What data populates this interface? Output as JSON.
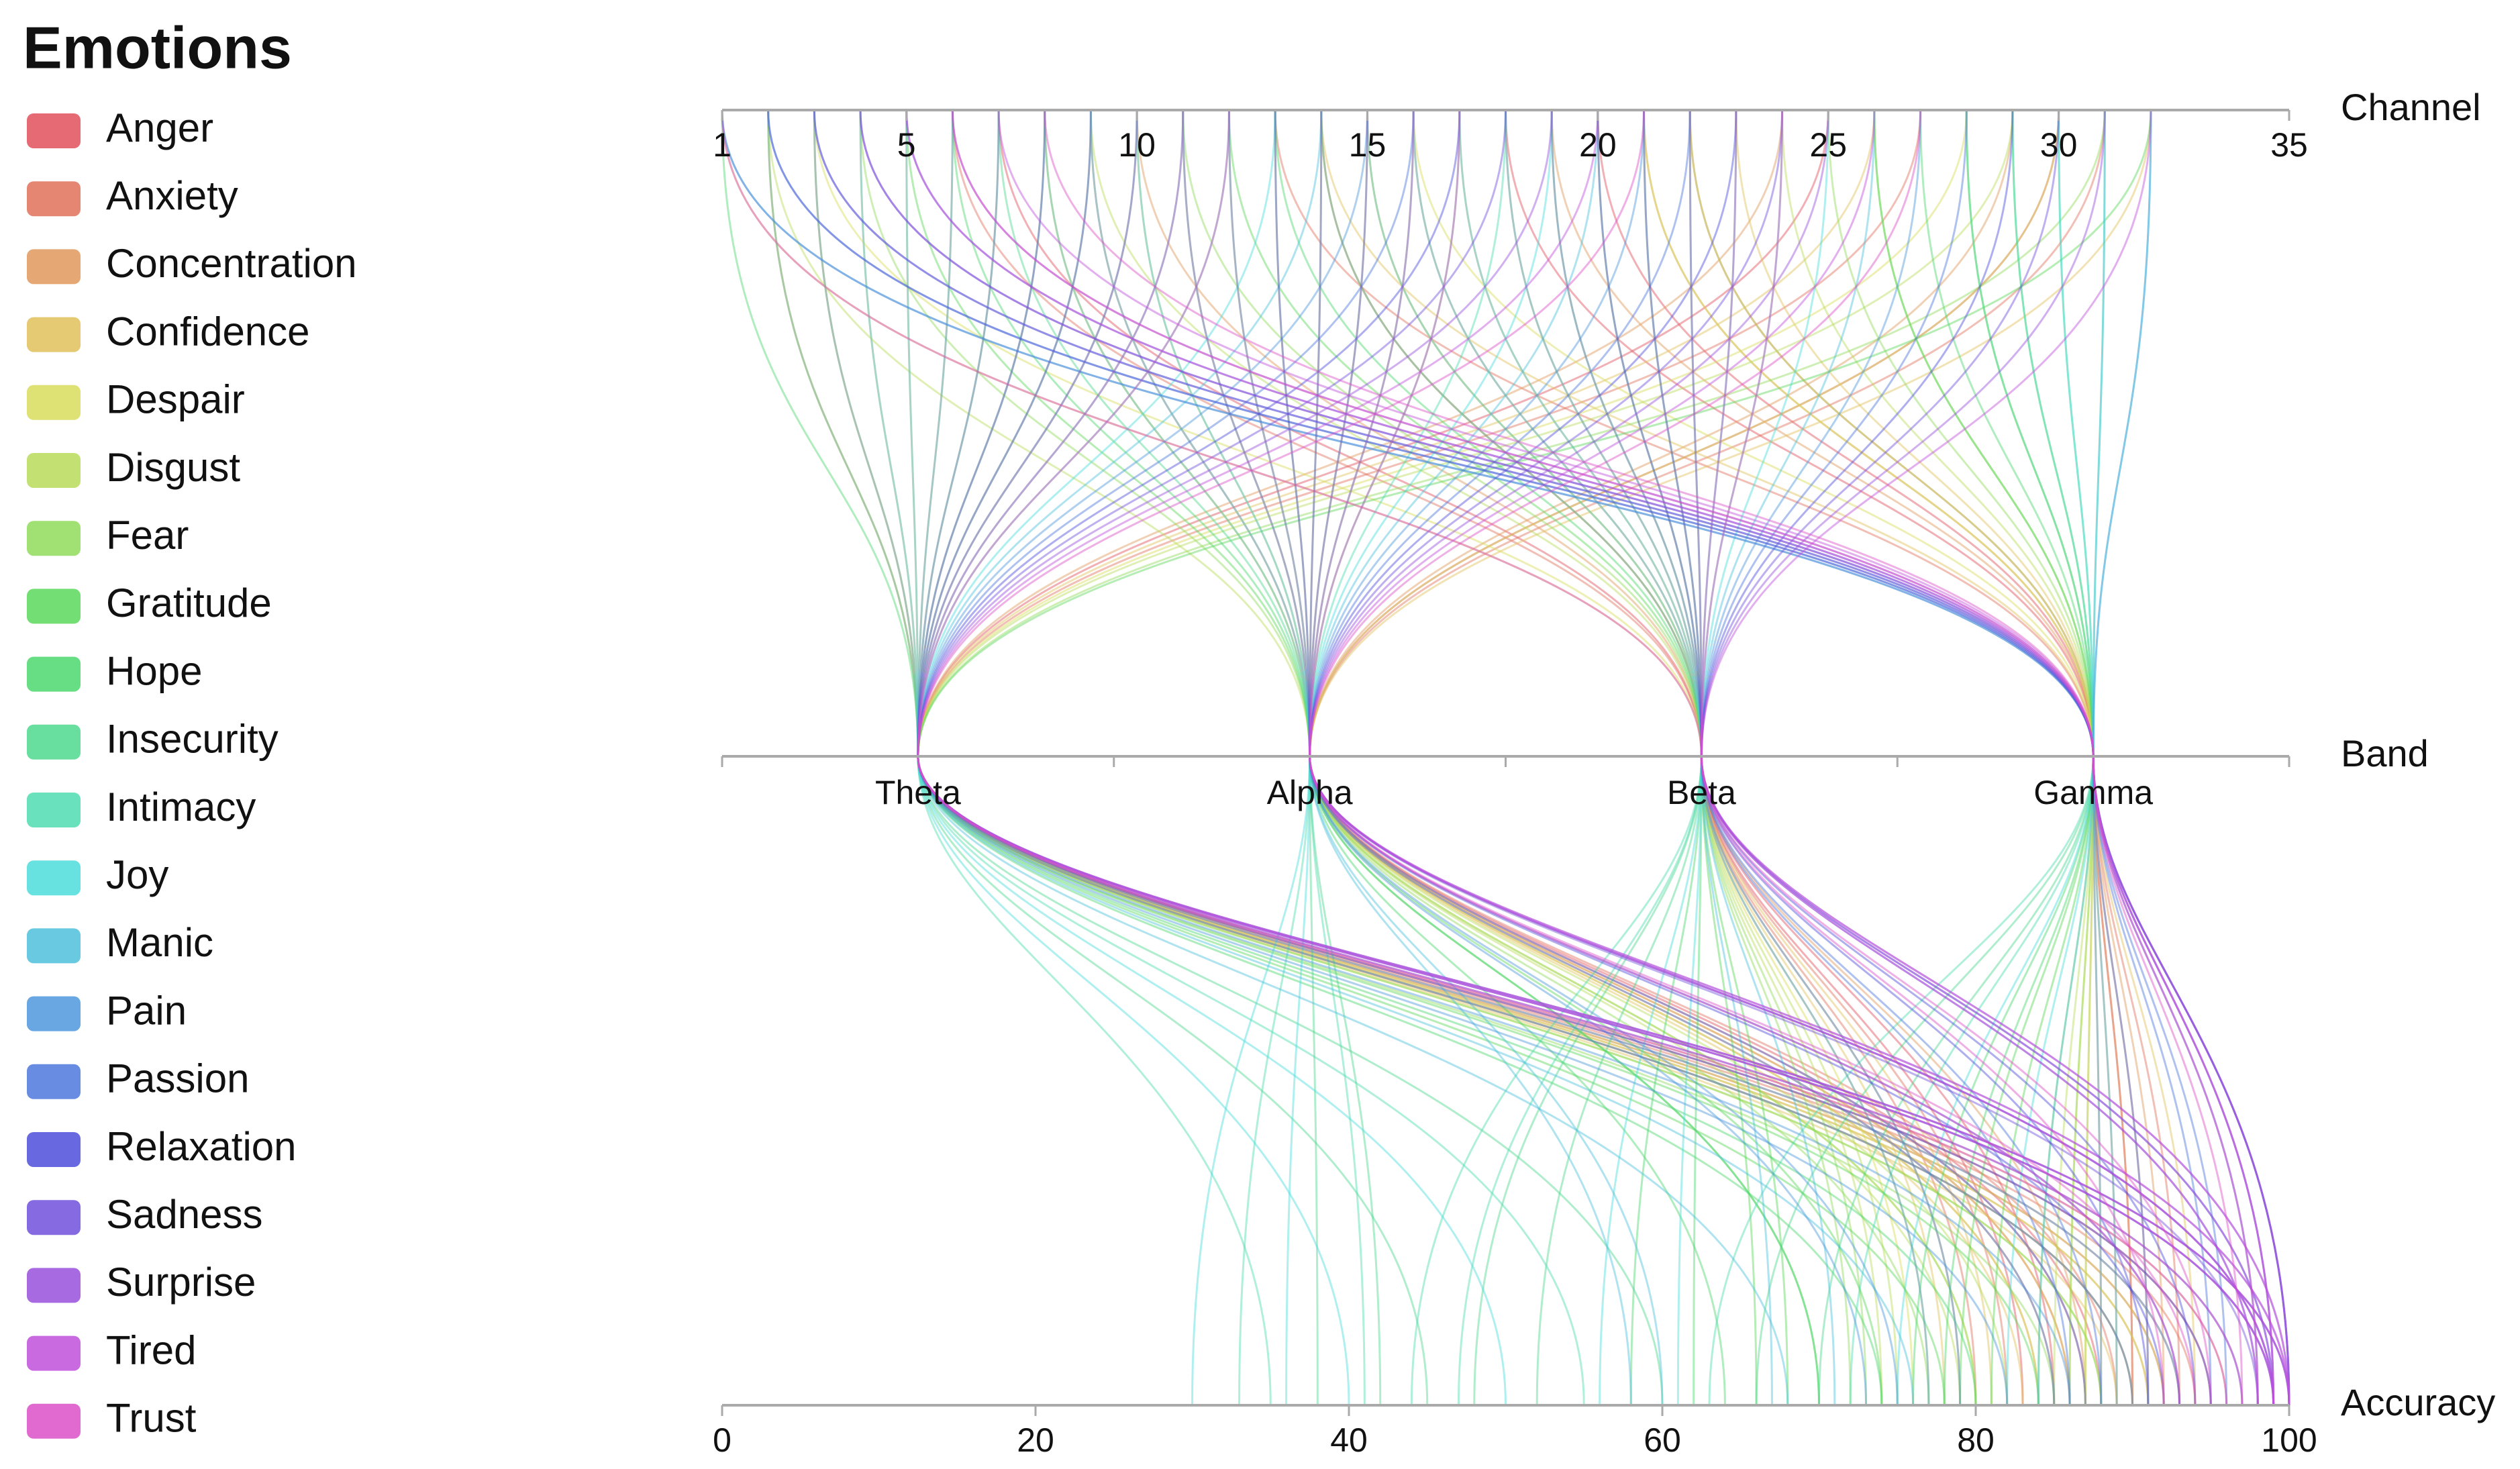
{
  "chart_data": {
    "type": "parallel",
    "legend_title": "Emotions",
    "axes": {
      "channel": {
        "label": "Channel",
        "xlim": [
          1,
          35
        ],
        "xticks": [
          1,
          5,
          10,
          15,
          20,
          25,
          30,
          35
        ]
      },
      "band": {
        "label": "Band",
        "categories": [
          "Theta",
          "Alpha",
          "Beta",
          "Gamma"
        ]
      },
      "accuracy": {
        "label": "Accuracy",
        "xlim": [
          0,
          100
        ],
        "xticks": [
          0,
          20,
          40,
          60,
          80,
          100
        ]
      }
    },
    "series": [
      {
        "name": "Anger",
        "color": "#e0505a",
        "channel": [
          3,
          9,
          14,
          20,
          25,
          30,
          7,
          18
        ],
        "band": [
          "Theta",
          "Alpha",
          "Beta",
          "Gamma",
          "Theta",
          "Alpha",
          "Beta",
          "Gamma"
        ],
        "accuracy": [
          92,
          88,
          85,
          90,
          95,
          87,
          83,
          91
        ]
      },
      {
        "name": "Anxiety",
        "color": "#e0715a",
        "channel": [
          2,
          11,
          16,
          22,
          27,
          31,
          6,
          13
        ],
        "band": [
          "Theta",
          "Alpha",
          "Beta",
          "Gamma",
          "Theta",
          "Alpha",
          "Beta",
          "Gamma"
        ],
        "accuracy": [
          90,
          86,
          82,
          93,
          94,
          89,
          80,
          88
        ]
      },
      {
        "name": "Concentration",
        "color": "#e0985a",
        "channel": [
          4,
          8,
          15,
          19,
          24,
          29,
          10,
          21
        ],
        "band": [
          "Theta",
          "Alpha",
          "Beta",
          "Gamma",
          "Theta",
          "Alpha",
          "Beta",
          "Gamma"
        ],
        "accuracy": [
          96,
          84,
          87,
          92,
          91,
          85,
          79,
          90
        ]
      },
      {
        "name": "Confidence",
        "color": "#e0c05a",
        "channel": [
          5,
          12,
          17,
          23,
          26,
          32,
          1,
          14
        ],
        "band": [
          "Theta",
          "Alpha",
          "Beta",
          "Gamma",
          "Theta",
          "Alpha",
          "Beta",
          "Gamma"
        ],
        "accuracy": [
          89,
          83,
          78,
          94,
          93,
          86,
          81,
          87
        ]
      },
      {
        "name": "Despair",
        "color": "#d8dc5a",
        "channel": [
          6,
          10,
          18,
          21,
          28,
          30,
          3,
          16
        ],
        "band": [
          "Theta",
          "Alpha",
          "Beta",
          "Gamma",
          "Theta",
          "Alpha",
          "Beta",
          "Gamma"
        ],
        "accuracy": [
          91,
          80,
          76,
          89,
          92,
          84,
          77,
          86
        ]
      },
      {
        "name": "Disgust",
        "color": "#b8dc5a",
        "channel": [
          7,
          13,
          19,
          24,
          29,
          2,
          9,
          22
        ],
        "band": [
          "Theta",
          "Alpha",
          "Beta",
          "Gamma",
          "Theta",
          "Alpha",
          "Beta",
          "Gamma"
        ],
        "accuracy": [
          88,
          79,
          74,
          87,
          90,
          82,
          75,
          85
        ]
      },
      {
        "name": "Fear",
        "color": "#90dc5a",
        "channel": [
          8,
          14,
          20,
          25,
          31,
          4,
          11,
          26
        ],
        "band": [
          "Theta",
          "Alpha",
          "Beta",
          "Gamma",
          "Theta",
          "Alpha",
          "Beta",
          "Gamma"
        ],
        "accuracy": [
          85,
          77,
          72,
          86,
          88,
          80,
          73,
          84
        ]
      },
      {
        "name": "Gratitude",
        "color": "#5ad85a",
        "channel": [
          9,
          15,
          21,
          26,
          32,
          5,
          12,
          28
        ],
        "band": [
          "Theta",
          "Alpha",
          "Beta",
          "Gamma",
          "Theta",
          "Alpha",
          "Beta",
          "Gamma"
        ],
        "accuracy": [
          78,
          70,
          66,
          81,
          84,
          74,
          68,
          79
        ]
      },
      {
        "name": "Hope",
        "color": "#4ed86e",
        "channel": [
          10,
          16,
          22,
          27,
          1,
          6,
          13,
          29
        ],
        "band": [
          "Theta",
          "Alpha",
          "Beta",
          "Gamma",
          "Theta",
          "Alpha",
          "Beta",
          "Gamma"
        ],
        "accuracy": [
          74,
          64,
          58,
          78,
          80,
          70,
          62,
          76
        ]
      },
      {
        "name": "Insecurity",
        "color": "#4ed88e",
        "channel": [
          11,
          17,
          23,
          28,
          2,
          7,
          14,
          30
        ],
        "band": [
          "Theta",
          "Alpha",
          "Beta",
          "Gamma",
          "Theta",
          "Alpha",
          "Beta",
          "Gamma"
        ],
        "accuracy": [
          45,
          38,
          52,
          70,
          60,
          42,
          48,
          66
        ]
      },
      {
        "name": "Intimacy",
        "color": "#4edcb0",
        "channel": [
          12,
          18,
          24,
          29,
          3,
          8,
          15,
          31
        ],
        "band": [
          "Theta",
          "Alpha",
          "Beta",
          "Gamma",
          "Theta",
          "Alpha",
          "Beta",
          "Gamma"
        ],
        "accuracy": [
          35,
          41,
          47,
          63,
          55,
          33,
          44,
          72
        ]
      },
      {
        "name": "Joy",
        "color": "#4edcdc",
        "channel": [
          13,
          19,
          25,
          30,
          4,
          9,
          16,
          32
        ],
        "band": [
          "Theta",
          "Alpha",
          "Beta",
          "Gamma",
          "Theta",
          "Alpha",
          "Beta",
          "Gamma"
        ],
        "accuracy": [
          40,
          30,
          56,
          75,
          50,
          36,
          61,
          82
        ]
      },
      {
        "name": "Manic",
        "color": "#4ec0dc",
        "channel": [
          14,
          20,
          26,
          31,
          5,
          10,
          17,
          1
        ],
        "band": [
          "Theta",
          "Alpha",
          "Beta",
          "Gamma",
          "Theta",
          "Alpha",
          "Beta",
          "Gamma"
        ],
        "accuracy": [
          68,
          60,
          71,
          84,
          76,
          58,
          67,
          88
        ]
      },
      {
        "name": "Pain",
        "color": "#4e98dc",
        "channel": [
          15,
          21,
          27,
          32,
          6,
          11,
          18,
          2
        ],
        "band": [
          "Theta",
          "Alpha",
          "Beta",
          "Gamma",
          "Theta",
          "Alpha",
          "Beta",
          "Gamma"
        ],
        "accuracy": [
          82,
          75,
          79,
          89,
          86,
          73,
          77,
          91
        ]
      },
      {
        "name": "Passion",
        "color": "#4e78dc",
        "channel": [
          16,
          22,
          28,
          1,
          7,
          12,
          19,
          3
        ],
        "band": [
          "Theta",
          "Alpha",
          "Beta",
          "Gamma",
          "Theta",
          "Alpha",
          "Beta",
          "Gamma"
        ],
        "accuracy": [
          90,
          85,
          88,
          95,
          93,
          87,
          86,
          96
        ]
      },
      {
        "name": "Relaxation",
        "color": "#4e4edc",
        "channel": [
          17,
          23,
          29,
          2,
          8,
          13,
          20,
          4
        ],
        "band": [
          "Theta",
          "Alpha",
          "Beta",
          "Gamma",
          "Theta",
          "Alpha",
          "Beta",
          "Gamma"
        ],
        "accuracy": [
          95,
          93,
          94,
          98,
          97,
          92,
          91,
          99
        ]
      },
      {
        "name": "Sadness",
        "color": "#7050dc",
        "channel": [
          18,
          24,
          30,
          3,
          9,
          14,
          21,
          5
        ],
        "band": [
          "Theta",
          "Alpha",
          "Beta",
          "Gamma",
          "Theta",
          "Alpha",
          "Beta",
          "Gamma"
        ],
        "accuracy": [
          99,
          98,
          99,
          100,
          100,
          99,
          98,
          100
        ]
      },
      {
        "name": "Surprise",
        "color": "#9850dc",
        "channel": [
          19,
          25,
          31,
          4,
          10,
          15,
          22,
          6
        ],
        "band": [
          "Theta",
          "Alpha",
          "Beta",
          "Gamma",
          "Theta",
          "Alpha",
          "Beta",
          "Gamma"
        ],
        "accuracy": [
          100,
          99,
          100,
          100,
          99,
          100,
          99,
          100
        ]
      },
      {
        "name": "Tired",
        "color": "#c050dc",
        "channel": [
          20,
          26,
          32,
          5,
          11,
          16,
          23,
          7
        ],
        "band": [
          "Theta",
          "Alpha",
          "Beta",
          "Gamma",
          "Theta",
          "Alpha",
          "Beta",
          "Gamma"
        ],
        "accuracy": [
          99,
          100,
          98,
          99,
          100,
          99,
          100,
          99
        ]
      },
      {
        "name": "Trust",
        "color": "#dc50c8",
        "channel": [
          21,
          27,
          1,
          6,
          12,
          17,
          24,
          8
        ],
        "band": [
          "Theta",
          "Alpha",
          "Beta",
          "Gamma",
          "Theta",
          "Alpha",
          "Beta",
          "Gamma"
        ],
        "accuracy": [
          97,
          94,
          95,
          98,
          96,
          93,
          92,
          97
        ]
      }
    ]
  }
}
